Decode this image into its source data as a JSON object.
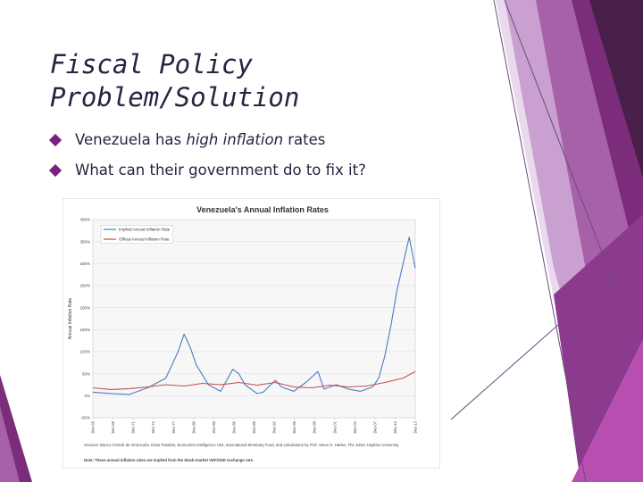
{
  "slide": {
    "title_line1": "Fiscal Policy",
    "title_line2": "Problem/Solution",
    "bullets": [
      {
        "before": "Venezuela has ",
        "emphasis": "high inflation",
        "after": " rates"
      },
      {
        "text": "What can their government do to fix it?"
      }
    ]
  },
  "chart_data": {
    "type": "line",
    "title": "Venezuela's Annual Inflation Rates",
    "ylabel": "Annual Inflation Rate",
    "ylim": [
      -50,
      400
    ],
    "yticks": [
      "400%",
      "350%",
      "300%",
      "250%",
      "200%",
      "150%",
      "100%",
      "50%",
      "0%",
      "-50%"
    ],
    "grid": true,
    "legend_position": "top-left",
    "xticks": [
      "Dec-65",
      "Dec-68",
      "Dec-71",
      "Dec-74",
      "Dec-77",
      "Dec-80",
      "Dec-83",
      "Dec-86",
      "Dec-89",
      "Dec-92",
      "Dec-95",
      "Dec-98",
      "Dec-01",
      "Dec-04",
      "Dec-07",
      "Dec-10",
      "Dec-13"
    ],
    "source_note_1": "Sources: Banco Central de Venezuela, Dolar Paralelo, Economist Intelligence Unit, International Monetary Fund, and calculations by Prof. Steve H. Hanke, The Johns Hopkins University.",
    "source_note_2": "Note: These annual inflation rates are implied from the black-market VEF/USD exchange rate.",
    "series": [
      {
        "name": "Implied Annual Inflation Rate",
        "color": "#4a7cc0",
        "points": [
          [
            1965,
            8
          ],
          [
            1968,
            5
          ],
          [
            1971,
            3
          ],
          [
            1974,
            18
          ],
          [
            1977,
            40
          ],
          [
            1979,
            100
          ],
          [
            1980,
            140
          ],
          [
            1981,
            110
          ],
          [
            1982,
            70
          ],
          [
            1984,
            25
          ],
          [
            1986,
            10
          ],
          [
            1988,
            60
          ],
          [
            1989,
            50
          ],
          [
            1990,
            25
          ],
          [
            1992,
            5
          ],
          [
            1993,
            8
          ],
          [
            1995,
            35
          ],
          [
            1996,
            20
          ],
          [
            1998,
            10
          ],
          [
            2000,
            30
          ],
          [
            2002,
            55
          ],
          [
            2003,
            15
          ],
          [
            2005,
            25
          ],
          [
            2007,
            15
          ],
          [
            2009,
            10
          ],
          [
            2011,
            20
          ],
          [
            2012,
            40
          ],
          [
            2013,
            90
          ],
          [
            2014,
            160
          ],
          [
            2015,
            240
          ],
          [
            2016,
            300
          ],
          [
            2017,
            360
          ],
          [
            2018,
            290
          ]
        ]
      },
      {
        "name": "Official Annual Inflation Rate",
        "color": "#c0504d",
        "points": [
          [
            1965,
            18
          ],
          [
            1968,
            14
          ],
          [
            1971,
            16
          ],
          [
            1974,
            20
          ],
          [
            1977,
            25
          ],
          [
            1980,
            22
          ],
          [
            1983,
            28
          ],
          [
            1986,
            25
          ],
          [
            1989,
            30
          ],
          [
            1992,
            24
          ],
          [
            1995,
            30
          ],
          [
            1998,
            20
          ],
          [
            2001,
            18
          ],
          [
            2004,
            24
          ],
          [
            2007,
            20
          ],
          [
            2010,
            22
          ],
          [
            2013,
            30
          ],
          [
            2016,
            40
          ],
          [
            2018,
            55
          ]
        ]
      }
    ]
  },
  "decor": {
    "colors": [
      "#4a1f4a",
      "#7b2d7b",
      "#a661a8",
      "#c9a0cf",
      "#e4d0e7"
    ]
  }
}
